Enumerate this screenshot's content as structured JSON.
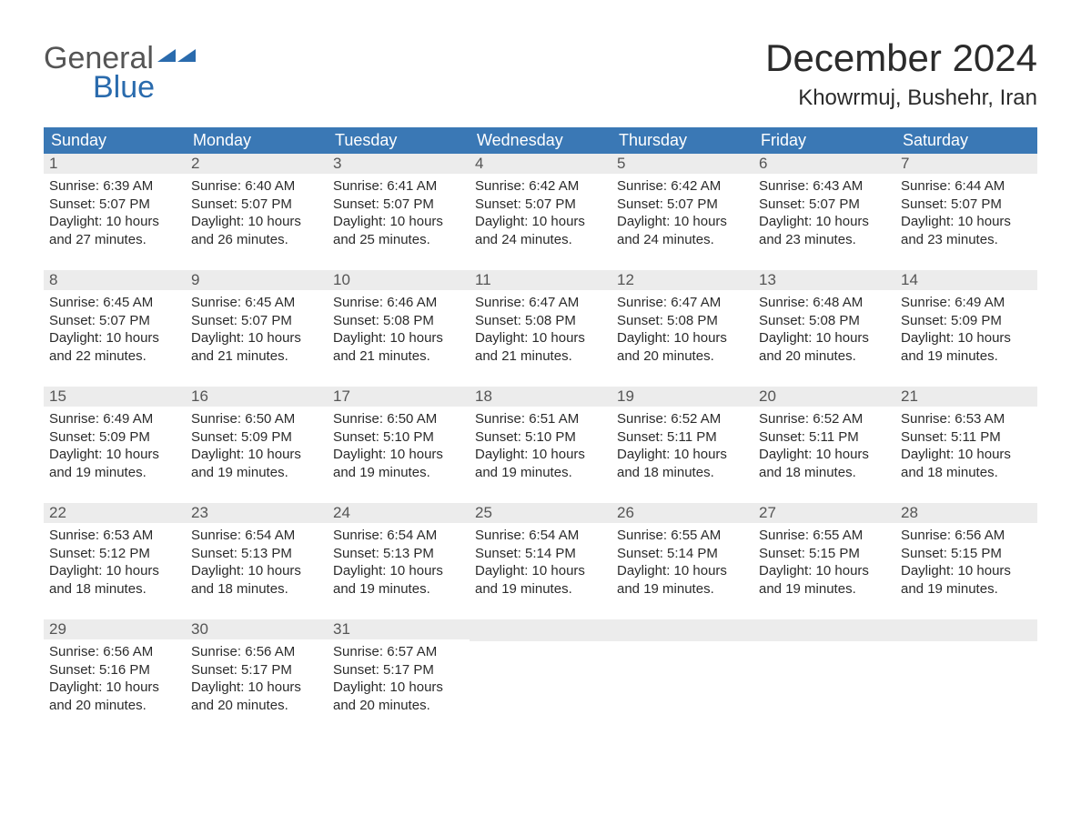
{
  "logo": {
    "part1": "General",
    "part2": "Blue"
  },
  "title": "December 2024",
  "location": "Khowrmuj, Bushehr, Iran",
  "colors": {
    "header_blue": "#3a78b5",
    "accent_blue": "#2a6bad",
    "day_stripe": "#ececec",
    "logo_gray": "#555555",
    "logo_blue": "#2a6bad"
  },
  "weekdays": [
    "Sunday",
    "Monday",
    "Tuesday",
    "Wednesday",
    "Thursday",
    "Friday",
    "Saturday"
  ],
  "weeks": [
    [
      {
        "n": "1",
        "sunrise": "Sunrise: 6:39 AM",
        "sunset": "Sunset: 5:07 PM",
        "dl1": "Daylight: 10 hours",
        "dl2": "and 27 minutes."
      },
      {
        "n": "2",
        "sunrise": "Sunrise: 6:40 AM",
        "sunset": "Sunset: 5:07 PM",
        "dl1": "Daylight: 10 hours",
        "dl2": "and 26 minutes."
      },
      {
        "n": "3",
        "sunrise": "Sunrise: 6:41 AM",
        "sunset": "Sunset: 5:07 PM",
        "dl1": "Daylight: 10 hours",
        "dl2": "and 25 minutes."
      },
      {
        "n": "4",
        "sunrise": "Sunrise: 6:42 AM",
        "sunset": "Sunset: 5:07 PM",
        "dl1": "Daylight: 10 hours",
        "dl2": "and 24 minutes."
      },
      {
        "n": "5",
        "sunrise": "Sunrise: 6:42 AM",
        "sunset": "Sunset: 5:07 PM",
        "dl1": "Daylight: 10 hours",
        "dl2": "and 24 minutes."
      },
      {
        "n": "6",
        "sunrise": "Sunrise: 6:43 AM",
        "sunset": "Sunset: 5:07 PM",
        "dl1": "Daylight: 10 hours",
        "dl2": "and 23 minutes."
      },
      {
        "n": "7",
        "sunrise": "Sunrise: 6:44 AM",
        "sunset": "Sunset: 5:07 PM",
        "dl1": "Daylight: 10 hours",
        "dl2": "and 23 minutes."
      }
    ],
    [
      {
        "n": "8",
        "sunrise": "Sunrise: 6:45 AM",
        "sunset": "Sunset: 5:07 PM",
        "dl1": "Daylight: 10 hours",
        "dl2": "and 22 minutes."
      },
      {
        "n": "9",
        "sunrise": "Sunrise: 6:45 AM",
        "sunset": "Sunset: 5:07 PM",
        "dl1": "Daylight: 10 hours",
        "dl2": "and 21 minutes."
      },
      {
        "n": "10",
        "sunrise": "Sunrise: 6:46 AM",
        "sunset": "Sunset: 5:08 PM",
        "dl1": "Daylight: 10 hours",
        "dl2": "and 21 minutes."
      },
      {
        "n": "11",
        "sunrise": "Sunrise: 6:47 AM",
        "sunset": "Sunset: 5:08 PM",
        "dl1": "Daylight: 10 hours",
        "dl2": "and 21 minutes."
      },
      {
        "n": "12",
        "sunrise": "Sunrise: 6:47 AM",
        "sunset": "Sunset: 5:08 PM",
        "dl1": "Daylight: 10 hours",
        "dl2": "and 20 minutes."
      },
      {
        "n": "13",
        "sunrise": "Sunrise: 6:48 AM",
        "sunset": "Sunset: 5:08 PM",
        "dl1": "Daylight: 10 hours",
        "dl2": "and 20 minutes."
      },
      {
        "n": "14",
        "sunrise": "Sunrise: 6:49 AM",
        "sunset": "Sunset: 5:09 PM",
        "dl1": "Daylight: 10 hours",
        "dl2": "and 19 minutes."
      }
    ],
    [
      {
        "n": "15",
        "sunrise": "Sunrise: 6:49 AM",
        "sunset": "Sunset: 5:09 PM",
        "dl1": "Daylight: 10 hours",
        "dl2": "and 19 minutes."
      },
      {
        "n": "16",
        "sunrise": "Sunrise: 6:50 AM",
        "sunset": "Sunset: 5:09 PM",
        "dl1": "Daylight: 10 hours",
        "dl2": "and 19 minutes."
      },
      {
        "n": "17",
        "sunrise": "Sunrise: 6:50 AM",
        "sunset": "Sunset: 5:10 PM",
        "dl1": "Daylight: 10 hours",
        "dl2": "and 19 minutes."
      },
      {
        "n": "18",
        "sunrise": "Sunrise: 6:51 AM",
        "sunset": "Sunset: 5:10 PM",
        "dl1": "Daylight: 10 hours",
        "dl2": "and 19 minutes."
      },
      {
        "n": "19",
        "sunrise": "Sunrise: 6:52 AM",
        "sunset": "Sunset: 5:11 PM",
        "dl1": "Daylight: 10 hours",
        "dl2": "and 18 minutes."
      },
      {
        "n": "20",
        "sunrise": "Sunrise: 6:52 AM",
        "sunset": "Sunset: 5:11 PM",
        "dl1": "Daylight: 10 hours",
        "dl2": "and 18 minutes."
      },
      {
        "n": "21",
        "sunrise": "Sunrise: 6:53 AM",
        "sunset": "Sunset: 5:11 PM",
        "dl1": "Daylight: 10 hours",
        "dl2": "and 18 minutes."
      }
    ],
    [
      {
        "n": "22",
        "sunrise": "Sunrise: 6:53 AM",
        "sunset": "Sunset: 5:12 PM",
        "dl1": "Daylight: 10 hours",
        "dl2": "and 18 minutes."
      },
      {
        "n": "23",
        "sunrise": "Sunrise: 6:54 AM",
        "sunset": "Sunset: 5:13 PM",
        "dl1": "Daylight: 10 hours",
        "dl2": "and 18 minutes."
      },
      {
        "n": "24",
        "sunrise": "Sunrise: 6:54 AM",
        "sunset": "Sunset: 5:13 PM",
        "dl1": "Daylight: 10 hours",
        "dl2": "and 19 minutes."
      },
      {
        "n": "25",
        "sunrise": "Sunrise: 6:54 AM",
        "sunset": "Sunset: 5:14 PM",
        "dl1": "Daylight: 10 hours",
        "dl2": "and 19 minutes."
      },
      {
        "n": "26",
        "sunrise": "Sunrise: 6:55 AM",
        "sunset": "Sunset: 5:14 PM",
        "dl1": "Daylight: 10 hours",
        "dl2": "and 19 minutes."
      },
      {
        "n": "27",
        "sunrise": "Sunrise: 6:55 AM",
        "sunset": "Sunset: 5:15 PM",
        "dl1": "Daylight: 10 hours",
        "dl2": "and 19 minutes."
      },
      {
        "n": "28",
        "sunrise": "Sunrise: 6:56 AM",
        "sunset": "Sunset: 5:15 PM",
        "dl1": "Daylight: 10 hours",
        "dl2": "and 19 minutes."
      }
    ],
    [
      {
        "n": "29",
        "sunrise": "Sunrise: 6:56 AM",
        "sunset": "Sunset: 5:16 PM",
        "dl1": "Daylight: 10 hours",
        "dl2": "and 20 minutes."
      },
      {
        "n": "30",
        "sunrise": "Sunrise: 6:56 AM",
        "sunset": "Sunset: 5:17 PM",
        "dl1": "Daylight: 10 hours",
        "dl2": "and 20 minutes."
      },
      {
        "n": "31",
        "sunrise": "Sunrise: 6:57 AM",
        "sunset": "Sunset: 5:17 PM",
        "dl1": "Daylight: 10 hours",
        "dl2": "and 20 minutes."
      },
      null,
      null,
      null,
      null
    ]
  ]
}
